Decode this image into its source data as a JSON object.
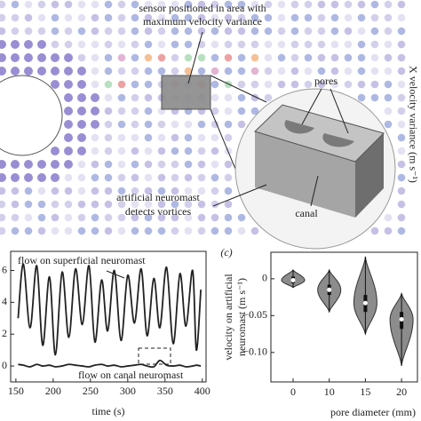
{
  "figure": {
    "sensor_note": [
      "sensor positioned in area with",
      "maximum velocity variance"
    ],
    "pores": "pores",
    "colorbar_label": "X velocity variance (m s⁻¹)",
    "canal": "canal",
    "vortex_note": [
      "artificial neuromast",
      "detects vortices"
    ]
  },
  "chart_data": [
    {
      "type": "line",
      "xlabel": "time (s)",
      "xlim": [
        143,
        405
      ],
      "xticks": [
        150,
        200,
        250,
        300,
        350,
        400
      ],
      "ylim": [
        -1,
        7.2
      ],
      "yticks": [
        0,
        2,
        4,
        6
      ],
      "annotations": [
        "flow on superficial neuromast",
        "flow on canal neuromast"
      ],
      "x": [
        153,
        160,
        169,
        178,
        186,
        195,
        203,
        212,
        221,
        230,
        239,
        248,
        256,
        265,
        273,
        282,
        291,
        300,
        309,
        318,
        326,
        335,
        343,
        352,
        361,
        370,
        378,
        387,
        392,
        398
      ],
      "series": [
        {
          "color": "#222222",
          "values": [
            3.0,
            6.4,
            2.4,
            6.3,
            1.3,
            5.6,
            0.7,
            5.9,
            1.8,
            6.1,
            2.6,
            6.3,
            1.5,
            5.4,
            2.2,
            6.0,
            1.6,
            5.7,
            2.7,
            6.1,
            1.9,
            5.5,
            2.4,
            6.2,
            1.4,
            5.8,
            2.5,
            6.0,
            1.0,
            4.8
          ]
        },
        {
          "color": "#222222",
          "values": [
            0.1,
            0.05,
            -0.05,
            0.1,
            0.0,
            0.05,
            -0.05,
            0.0,
            0.1,
            0.05,
            0.0,
            -0.05,
            0.05,
            0.1,
            0.0,
            0.05,
            -0.05,
            0.0,
            0.05,
            0.1,
            0.0,
            -0.05,
            0.35,
            0.05,
            0.0,
            0.05,
            -0.05,
            0.0,
            0.05,
            0.0
          ]
        }
      ]
    },
    {
      "type": "violin",
      "panel_label": "(c)",
      "xlabel": "pore diameter (mm)",
      "ylabel": [
        "velocity on artificial",
        "neuromast (m s⁻¹)"
      ],
      "categories": [
        "0",
        "10",
        "15",
        "20"
      ],
      "color": "#8c8c8c",
      "ylim": [
        -0.14,
        0.036
      ],
      "yticks": [
        0,
        {
          "value": -0.05,
          "label": "−0.05"
        },
        {
          "value": -0.1,
          "label": "−0.10"
        }
      ],
      "violins": [
        {
          "min": -0.012,
          "q1": -0.006,
          "median": -0.002,
          "q3": 0.003,
          "max": 0.012
        },
        {
          "min": -0.045,
          "q1": -0.022,
          "median": -0.015,
          "q3": -0.008,
          "max": 0.012
        },
        {
          "min": -0.075,
          "q1": -0.045,
          "median": -0.033,
          "q3": -0.022,
          "max": 0.03
        },
        {
          "min": -0.118,
          "q1": -0.068,
          "median": -0.055,
          "q3": -0.045,
          "max": -0.02
        }
      ]
    }
  ]
}
